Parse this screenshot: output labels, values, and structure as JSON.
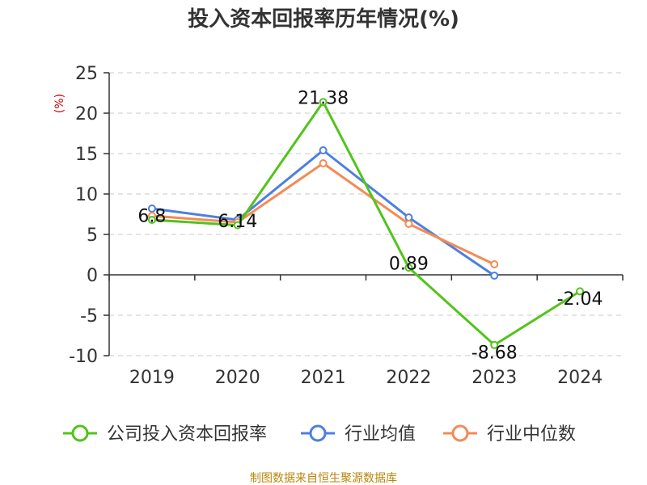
{
  "chart_data": {
    "type": "line",
    "title": "投入资本回报率历年情况(%)",
    "ylabel": "(%)",
    "xlabel": "",
    "categories": [
      "2019",
      "2020",
      "2021",
      "2022",
      "2023",
      "2024"
    ],
    "ylim": [
      -10,
      25
    ],
    "yticks": [
      25,
      20,
      15,
      10,
      5,
      0,
      -5,
      -10
    ],
    "grid": true,
    "legend_position": "bottom",
    "series": [
      {
        "name": "公司投入资本回报率",
        "color": "#52c41a",
        "values": [
          6.8,
          6.14,
          21.38,
          0.89,
          -8.68,
          -2.04
        ],
        "labels": [
          "6.8",
          "6.14",
          "21.38",
          "0.89",
          "-8.68",
          "-2.04"
        ]
      },
      {
        "name": "行业均值",
        "color": "#4e7fe0",
        "values": [
          8.2,
          6.8,
          15.4,
          7.1,
          -0.1,
          null
        ]
      },
      {
        "name": "行业中位数",
        "color": "#f58a55",
        "values": [
          7.3,
          6.5,
          13.8,
          6.3,
          1.3,
          null
        ]
      }
    ]
  },
  "source_text": "制图数据来自恒生聚源数据库"
}
